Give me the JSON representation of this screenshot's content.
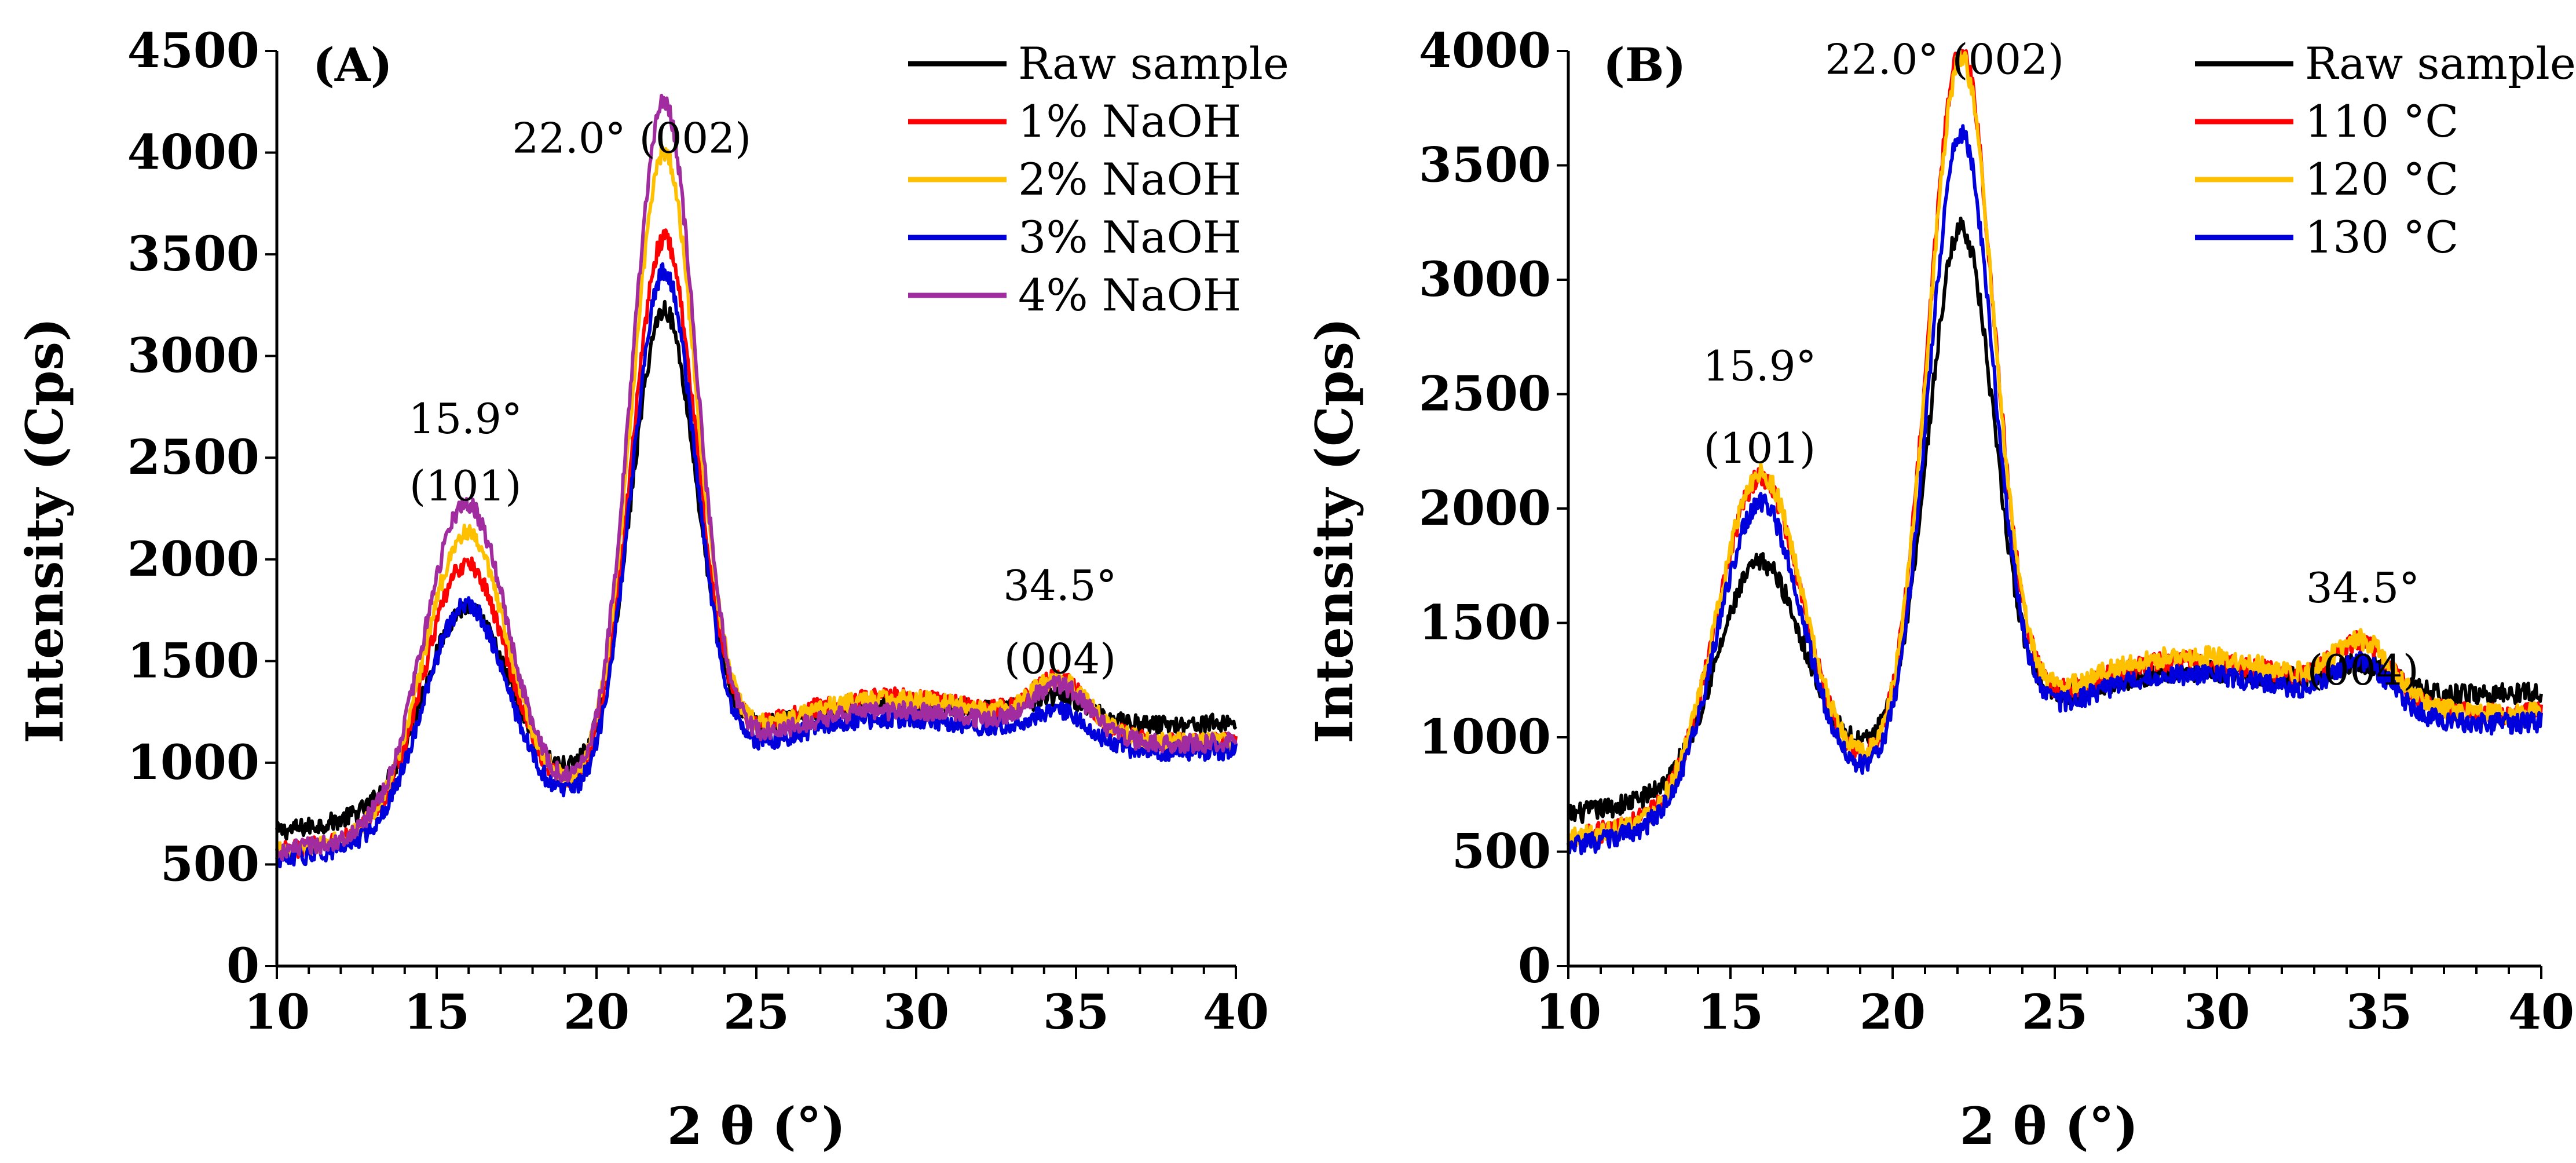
{
  "figure": {
    "caption": ""
  },
  "chart_data": [
    {
      "panel_label": "(A)",
      "type": "line",
      "xlabel": "2 θ (°)",
      "ylabel": "Intensity (Cps)",
      "xlim": [
        10,
        40
      ],
      "ylim": [
        0,
        4500
      ],
      "xticks": [
        10,
        15,
        20,
        25,
        30,
        35,
        40
      ],
      "yticks": [
        0,
        500,
        1000,
        1500,
        2000,
        2500,
        3000,
        3500,
        4000,
        4500
      ],
      "annotations": [
        {
          "id": "peak-101-angle",
          "text": "15.9°",
          "x": 15.9,
          "y": 2620
        },
        {
          "id": "peak-101-plane",
          "text": "(101)",
          "x": 15.9,
          "y": 2290
        },
        {
          "id": "peak-002",
          "text": "22.0° (002)",
          "x": 21.1,
          "y": 4000
        },
        {
          "id": "peak-004-angle",
          "text": "34.5°",
          "x": 34.5,
          "y": 1800
        },
        {
          "id": "peak-004-plane",
          "text": "(004)",
          "x": 34.5,
          "y": 1440
        }
      ],
      "series": [
        {
          "name": "Raw sample",
          "color": "#000000",
          "base": 660,
          "p1": 950,
          "p2": 2200,
          "p3": 110,
          "bump": 250,
          "noise": 45
        },
        {
          "name": "1% NaOH",
          "color": "#ff0000",
          "base": 560,
          "p1": 1260,
          "p2": 2600,
          "p3": 240,
          "bump": 390,
          "noise": 45
        },
        {
          "name": "2% NaOH",
          "color": "#ffc000",
          "base": 560,
          "p1": 1410,
          "p2": 3030,
          "p3": 240,
          "bump": 380,
          "noise": 45
        },
        {
          "name": "3% NaOH",
          "color": "#0000dd",
          "base": 520,
          "p1": 1100,
          "p2": 2500,
          "p3": 150,
          "bump": 320,
          "noise": 45
        },
        {
          "name": "4% NaOH",
          "color": "#a02ca0",
          "base": 560,
          "p1": 1560,
          "p2": 3300,
          "p3": 240,
          "bump": 320,
          "noise": 45
        }
      ]
    },
    {
      "panel_label": "(B)",
      "type": "line",
      "xlabel": "2 θ (°)",
      "ylabel": "Intensity (Cps)",
      "xlim": [
        10,
        40
      ],
      "ylim": [
        0,
        4000
      ],
      "xticks": [
        10,
        15,
        20,
        25,
        30,
        35,
        40
      ],
      "yticks": [
        0,
        500,
        1000,
        1500,
        2000,
        2500,
        3000,
        3500,
        4000
      ],
      "annotations": [
        {
          "id": "peak-101-angle",
          "text": "15.9°",
          "x": 15.9,
          "y": 2560
        },
        {
          "id": "peak-101-plane",
          "text": "(101)",
          "x": 15.9,
          "y": 2200
        },
        {
          "id": "peak-002",
          "text": "22.0° (002)",
          "x": 21.6,
          "y": 3900
        },
        {
          "id": "peak-004-angle",
          "text": "34.5°",
          "x": 34.5,
          "y": 1590
        },
        {
          "id": "peak-004-plane",
          "text": "(004)",
          "x": 34.5,
          "y": 1230
        }
      ],
      "series": [
        {
          "name": "Raw sample",
          "color": "#000000",
          "base": 660,
          "p1": 950,
          "p2": 2200,
          "p3": 110,
          "bump": 250,
          "noise": 45
        },
        {
          "name": "110 °C",
          "color": "#ff0000",
          "base": 560,
          "p1": 1420,
          "p2": 3030,
          "p3": 240,
          "bump": 400,
          "noise": 45
        },
        {
          "name": "120 °C",
          "color": "#ffc000",
          "base": 560,
          "p1": 1440,
          "p2": 2980,
          "p3": 240,
          "bump": 420,
          "noise": 45
        },
        {
          "name": "130 °C",
          "color": "#0000dd",
          "base": 520,
          "p1": 1350,
          "p2": 2700,
          "p3": 200,
          "bump": 380,
          "noise": 45
        }
      ]
    }
  ]
}
